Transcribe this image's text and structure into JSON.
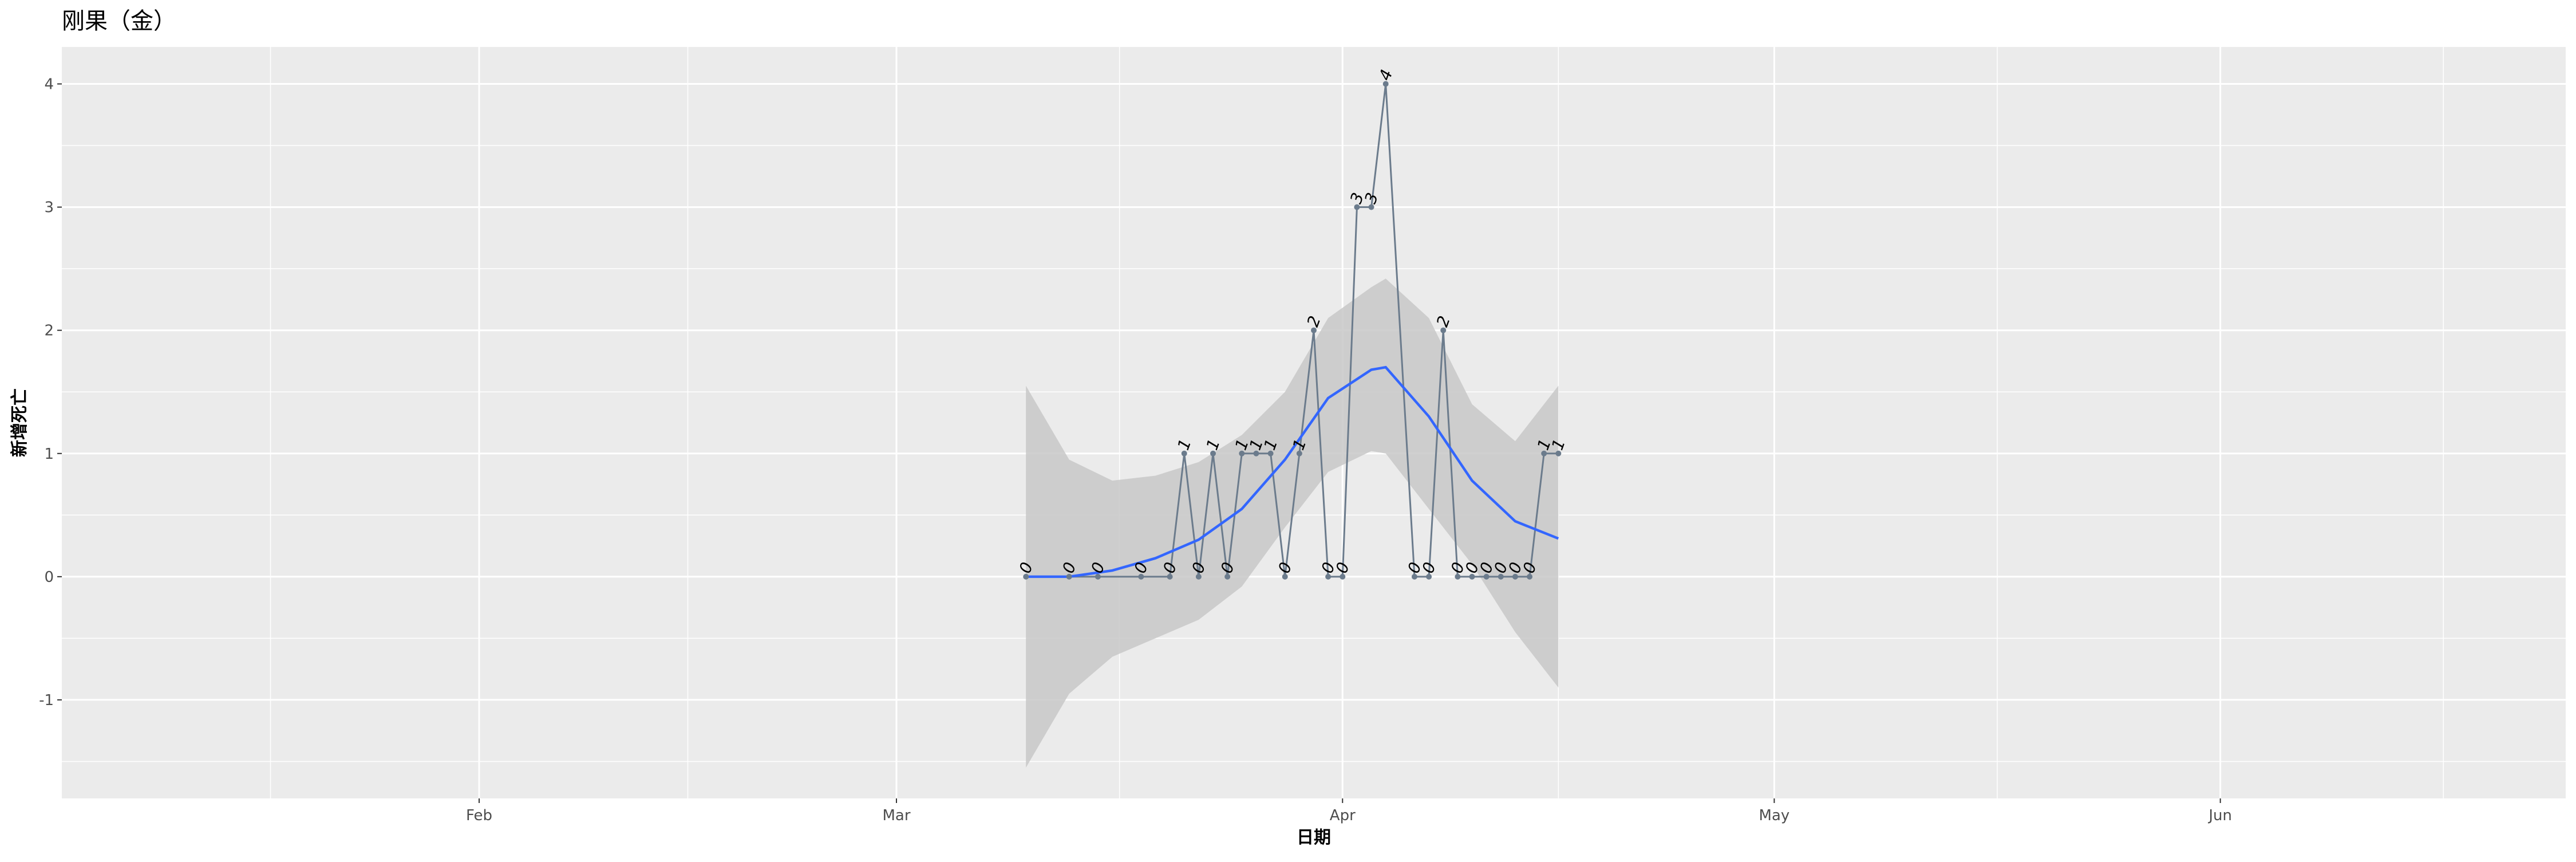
{
  "chart_data": {
    "type": "line",
    "title": "刚果（金）",
    "xlabel": "日期",
    "ylabel": "新增死亡",
    "x_tick_labels": [
      "Feb",
      "Mar",
      "Apr",
      "May",
      "Jun"
    ],
    "x_ticks": [
      "2020-02-01",
      "2020-03-01",
      "2020-04-01",
      "2020-05-01",
      "2020-06-01"
    ],
    "xlim": [
      "2020-01-03",
      "2020-06-25"
    ],
    "y_ticks": [
      -1,
      0,
      1,
      2,
      3,
      4
    ],
    "ylim": [
      -1.8,
      4.3
    ],
    "grid": true,
    "series": [
      {
        "color": "#6b7b8c",
        "points": [
          {
            "date": "2020-03-10",
            "value": 0
          },
          {
            "date": "2020-03-13",
            "value": 0
          },
          {
            "date": "2020-03-15",
            "value": 0
          },
          {
            "date": "2020-03-18",
            "value": 0
          },
          {
            "date": "2020-03-20",
            "value": 0
          },
          {
            "date": "2020-03-21",
            "value": 1
          },
          {
            "date": "2020-03-22",
            "value": 0
          },
          {
            "date": "2020-03-23",
            "value": 1
          },
          {
            "date": "2020-03-24",
            "value": 0
          },
          {
            "date": "2020-03-25",
            "value": 1
          },
          {
            "date": "2020-03-26",
            "value": 1
          },
          {
            "date": "2020-03-27",
            "value": 1
          },
          {
            "date": "2020-03-28",
            "value": 0
          },
          {
            "date": "2020-03-29",
            "value": 1
          },
          {
            "date": "2020-03-30",
            "value": 2
          },
          {
            "date": "2020-03-31",
            "value": 0
          },
          {
            "date": "2020-04-01",
            "value": 0
          },
          {
            "date": "2020-04-02",
            "value": 3
          },
          {
            "date": "2020-04-03",
            "value": 3
          },
          {
            "date": "2020-04-04",
            "value": 4
          },
          {
            "date": "2020-04-06",
            "value": 0
          },
          {
            "date": "2020-04-07",
            "value": 0
          },
          {
            "date": "2020-04-08",
            "value": 2
          },
          {
            "date": "2020-04-09",
            "value": 0
          },
          {
            "date": "2020-04-10",
            "value": 0
          },
          {
            "date": "2020-04-11",
            "value": 0
          },
          {
            "date": "2020-04-12",
            "value": 0
          },
          {
            "date": "2020-04-13",
            "value": 0
          },
          {
            "date": "2020-04-14",
            "value": 0
          },
          {
            "date": "2020-04-15",
            "value": 1
          },
          {
            "date": "2020-04-16",
            "value": 1
          }
        ]
      }
    ],
    "smooth": {
      "method": "loess",
      "color": "#3366ff",
      "band_color": "#c8c8c8",
      "points": [
        {
          "date": "2020-03-10",
          "fit": 0.0,
          "lower": -1.55,
          "upper": 1.55
        },
        {
          "date": "2020-03-13",
          "fit": 0.0,
          "lower": -0.95,
          "upper": 0.95
        },
        {
          "date": "2020-03-16",
          "fit": 0.05,
          "lower": -0.65,
          "upper": 0.78
        },
        {
          "date": "2020-03-19",
          "fit": 0.15,
          "lower": -0.5,
          "upper": 0.82
        },
        {
          "date": "2020-03-22",
          "fit": 0.3,
          "lower": -0.35,
          "upper": 0.93
        },
        {
          "date": "2020-03-25",
          "fit": 0.55,
          "lower": -0.08,
          "upper": 1.15
        },
        {
          "date": "2020-03-28",
          "fit": 0.95,
          "lower": 0.4,
          "upper": 1.5
        },
        {
          "date": "2020-03-31",
          "fit": 1.45,
          "lower": 0.85,
          "upper": 2.1
        },
        {
          "date": "2020-04-03",
          "fit": 1.68,
          "lower": 1.02,
          "upper": 2.35
        },
        {
          "date": "2020-04-04",
          "fit": 1.7,
          "lower": 1.0,
          "upper": 2.42
        },
        {
          "date": "2020-04-07",
          "fit": 1.3,
          "lower": 0.55,
          "upper": 2.1
        },
        {
          "date": "2020-04-10",
          "fit": 0.78,
          "lower": 0.1,
          "upper": 1.4
        },
        {
          "date": "2020-04-13",
          "fit": 0.45,
          "lower": -0.45,
          "upper": 1.1
        },
        {
          "date": "2020-04-16",
          "fit": 0.31,
          "lower": -0.9,
          "upper": 1.55
        }
      ]
    }
  }
}
